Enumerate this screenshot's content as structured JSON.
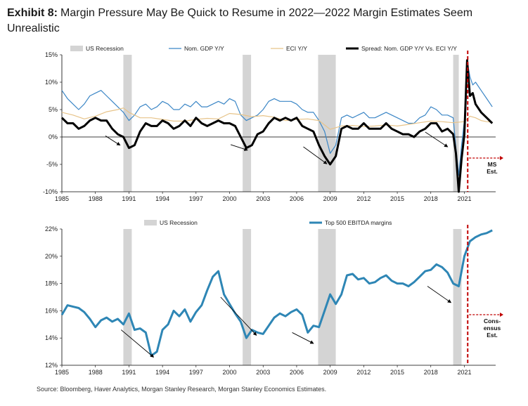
{
  "exhibit": {
    "label": "Exhibit 8:",
    "title": "Margin Pressure May Be Quick to Resume in 2022—2022 Margin Estimates Seem Unrealistic"
  },
  "source": "Source: Bloomberg, Haver Analytics, Morgan Stanley Research, Morgan Stanley Economics Estimates.",
  "colors": {
    "recession": "#d4d4d4",
    "nom_gdp": "#3b86c6",
    "eci": "#e7c48a",
    "spread": "#000000",
    "ebitda": "#2e86b5",
    "estimate_line": "#c00000"
  },
  "chart_data": [
    {
      "type": "line",
      "legend": [
        "US Recession",
        "Nom. GDP Y/Y",
        "ECI Y/Y",
        "Spread: Nom. GDP Y/Y Vs. ECI Y/Y"
      ],
      "xlim": [
        1985,
        2023.8
      ],
      "ylim": [
        -10,
        15
      ],
      "x_ticks": [
        "1985",
        "1988",
        "1991",
        "1994",
        "1997",
        "2000",
        "2003",
        "2006",
        "2009",
        "2012",
        "2015",
        "2018",
        "2021"
      ],
      "y_ticks": [
        "15%",
        "10%",
        "5%",
        "0%",
        "-5%",
        "-10%"
      ],
      "recessions": [
        [
          1990.5,
          1991.25
        ],
        [
          2001.17,
          2001.92
        ],
        [
          2007.92,
          2009.5
        ],
        [
          2020.0,
          2020.5
        ]
      ],
      "estimate_start": 2021.3,
      "estimate_label": [
        "MS",
        "Est."
      ],
      "series": [
        {
          "name": "Nom. GDP Y/Y",
          "x": [
            1985,
            1985.5,
            1986,
            1986.5,
            1987,
            1987.5,
            1988,
            1988.5,
            1989,
            1989.5,
            1990,
            1990.5,
            1991,
            1991.5,
            1992,
            1992.5,
            1993,
            1993.5,
            1994,
            1994.5,
            1995,
            1995.5,
            1996,
            1996.5,
            1997,
            1997.5,
            1998,
            1998.5,
            1999,
            1999.5,
            2000,
            2000.5,
            2001,
            2001.5,
            2002,
            2002.5,
            2003,
            2003.5,
            2004,
            2004.5,
            2005,
            2005.5,
            2006,
            2006.5,
            2007,
            2007.5,
            2008,
            2008.5,
            2009,
            2009.5,
            2010,
            2010.5,
            2011,
            2011.5,
            2012,
            2012.5,
            2013,
            2013.5,
            2014,
            2014.5,
            2015,
            2015.5,
            2016,
            2016.5,
            2017,
            2017.5,
            2018,
            2018.5,
            2019,
            2019.5,
            2020,
            2020.25,
            2020.5,
            2020.75,
            2021,
            2021.25,
            2021.5,
            2021.75,
            2022,
            2022.5,
            2023,
            2023.5
          ],
          "values": [
            8.5,
            7.0,
            6.0,
            5.0,
            6.0,
            7.5,
            8.0,
            8.5,
            7.5,
            6.5,
            5.5,
            4.5,
            3.0,
            4.0,
            5.5,
            6.0,
            5.0,
            5.5,
            6.5,
            6.0,
            5.0,
            5.0,
            6.0,
            5.5,
            6.5,
            5.5,
            5.5,
            6.0,
            6.5,
            6.0,
            7.0,
            6.5,
            4.0,
            3.0,
            3.5,
            4.0,
            5.0,
            6.5,
            7.0,
            6.5,
            6.5,
            6.5,
            6.0,
            5.0,
            4.5,
            4.5,
            3.0,
            1.0,
            -3.0,
            -1.5,
            3.5,
            4.0,
            3.5,
            4.0,
            4.5,
            3.5,
            3.5,
            4.0,
            4.5,
            4.0,
            3.5,
            3.0,
            2.5,
            2.5,
            3.5,
            4.0,
            5.5,
            5.0,
            4.0,
            4.0,
            3.5,
            -2.0,
            -7.0,
            -1.5,
            3.0,
            14.0,
            11.0,
            9.5,
            10.0,
            8.5,
            7.0,
            5.5
          ]
        },
        {
          "name": "ECI Y/Y",
          "x": [
            1985,
            1986,
            1987,
            1988,
            1989,
            1990,
            1990.5,
            1991,
            1992,
            1993,
            1994,
            1995,
            1996,
            1997,
            1998,
            1999,
            2000,
            2001,
            2002,
            2003,
            2004,
            2005,
            2006,
            2007,
            2008,
            2009,
            2010,
            2011,
            2012,
            2013,
            2014,
            2015,
            2016,
            2017,
            2018,
            2019,
            2020,
            2021,
            2021.5,
            2022,
            2022.5,
            2023,
            2023.5
          ],
          "values": [
            4.5,
            4.0,
            3.3,
            3.8,
            4.6,
            5.0,
            5.3,
            4.5,
            3.5,
            3.5,
            3.2,
            2.9,
            2.9,
            3.2,
            3.4,
            3.3,
            4.3,
            4.1,
            3.7,
            3.9,
            3.6,
            3.0,
            3.2,
            3.3,
            3.0,
            1.4,
            2.0,
            2.1,
            1.9,
            2.0,
            2.2,
            2.0,
            2.3,
            2.6,
            2.9,
            2.8,
            2.6,
            2.8,
            3.8,
            3.5,
            3.0,
            2.8,
            2.7
          ]
        },
        {
          "name": "Spread: Nom. GDP Y/Y Vs. ECI Y/Y",
          "x": [
            1985,
            1985.5,
            1986,
            1986.5,
            1987,
            1987.5,
            1988,
            1988.5,
            1989,
            1989.5,
            1990,
            1990.5,
            1991,
            1991.5,
            1992,
            1992.5,
            1993,
            1993.5,
            1994,
            1994.5,
            1995,
            1995.5,
            1996,
            1996.5,
            1997,
            1997.5,
            1998,
            1998.5,
            1999,
            1999.5,
            2000,
            2000.5,
            2001,
            2001.5,
            2002,
            2002.5,
            2003,
            2003.5,
            2004,
            2004.5,
            2005,
            2005.5,
            2006,
            2006.5,
            2007,
            2007.5,
            2008,
            2008.5,
            2009,
            2009.5,
            2010,
            2010.5,
            2011,
            2011.5,
            2012,
            2012.5,
            2013,
            2013.5,
            2014,
            2014.5,
            2015,
            2015.5,
            2016,
            2016.5,
            2017,
            2017.5,
            2018,
            2018.5,
            2019,
            2019.5,
            2020,
            2020.25,
            2020.5,
            2020.75,
            2021,
            2021.25,
            2021.5,
            2021.75,
            2022,
            2022.5,
            2023,
            2023.5
          ],
          "values": [
            3.5,
            2.5,
            2.5,
            1.5,
            2.0,
            3.0,
            3.5,
            3.0,
            3.0,
            1.5,
            0.5,
            0.0,
            -2.0,
            -1.5,
            1.0,
            2.5,
            2.0,
            2.0,
            3.0,
            2.5,
            1.5,
            2.0,
            3.0,
            2.0,
            3.5,
            2.5,
            2.0,
            2.5,
            3.0,
            2.5,
            2.5,
            2.0,
            0.0,
            -2.0,
            -1.5,
            0.5,
            1.0,
            2.5,
            3.5,
            3.0,
            3.5,
            3.0,
            3.5,
            2.0,
            1.5,
            1.0,
            -1.5,
            -3.5,
            -5.0,
            -3.5,
            1.5,
            2.0,
            1.5,
            1.5,
            2.5,
            1.5,
            1.5,
            1.5,
            2.5,
            1.5,
            1.0,
            0.5,
            0.5,
            0.0,
            1.0,
            1.5,
            2.5,
            2.5,
            1.0,
            1.5,
            0.5,
            -3.0,
            -10.0,
            -4.0,
            0.5,
            14.0,
            7.5,
            8.0,
            6.0,
            4.5,
            3.5,
            2.5
          ]
        }
      ]
    },
    {
      "type": "line",
      "legend": [
        "US Recession",
        "Top 500 EBITDA margins"
      ],
      "xlim": [
        1985,
        2023.8
      ],
      "ylim": [
        12,
        22
      ],
      "x_ticks": [
        "1985",
        "1988",
        "1991",
        "1994",
        "1997",
        "2000",
        "2003",
        "2006",
        "2009",
        "2012",
        "2015",
        "2018",
        "2021"
      ],
      "y_ticks": [
        "22%",
        "20%",
        "18%",
        "16%",
        "14%",
        "12%"
      ],
      "recessions": [
        [
          1990.5,
          1991.25
        ],
        [
          2001.17,
          2001.92
        ],
        [
          2007.92,
          2009.5
        ],
        [
          2020.0,
          2020.75
        ]
      ],
      "estimate_start": 2021.3,
      "estimate_label": [
        "Cons-",
        "ensus",
        "Est."
      ],
      "series": [
        {
          "name": "Top 500 EBITDA margins",
          "x": [
            1985,
            1985.5,
            1986,
            1986.5,
            1987,
            1987.5,
            1988,
            1988.5,
            1989,
            1989.5,
            1990,
            1990.5,
            1991,
            1991.5,
            1992,
            1992.5,
            1993,
            1993.5,
            1994,
            1994.5,
            1995,
            1995.5,
            1996,
            1996.5,
            1997,
            1997.5,
            1998,
            1998.5,
            1999,
            1999.5,
            2000,
            2000.5,
            2001,
            2001.5,
            2002,
            2002.5,
            2003,
            2003.5,
            2004,
            2004.5,
            2005,
            2005.5,
            2006,
            2006.5,
            2007,
            2007.5,
            2008,
            2008.5,
            2009,
            2009.5,
            2010,
            2010.5,
            2011,
            2011.5,
            2012,
            2012.5,
            2013,
            2013.5,
            2014,
            2014.5,
            2015,
            2015.5,
            2016,
            2016.5,
            2017,
            2017.5,
            2018,
            2018.5,
            2019,
            2019.5,
            2020,
            2020.5,
            2021,
            2021.5,
            2022,
            2022.5,
            2023,
            2023.5
          ],
          "values": [
            15.7,
            16.4,
            16.3,
            16.2,
            15.9,
            15.4,
            14.8,
            15.3,
            15.5,
            15.2,
            15.4,
            15.0,
            15.8,
            14.6,
            14.7,
            14.4,
            12.7,
            13.0,
            14.6,
            15.0,
            16.0,
            15.6,
            16.1,
            15.2,
            15.9,
            16.4,
            17.5,
            18.5,
            18.9,
            17.2,
            16.5,
            15.8,
            15.2,
            14.0,
            14.6,
            14.4,
            14.3,
            14.9,
            15.5,
            15.8,
            15.6,
            15.9,
            16.1,
            15.7,
            14.4,
            14.9,
            14.8,
            16.0,
            17.2,
            16.5,
            17.2,
            18.6,
            18.7,
            18.3,
            18.4,
            18.0,
            18.1,
            18.4,
            18.6,
            18.2,
            18.0,
            18.0,
            17.8,
            18.1,
            18.5,
            18.9,
            19.0,
            19.4,
            19.2,
            18.8,
            18.0,
            17.8,
            20.0,
            21.1,
            21.4,
            21.6,
            21.7,
            21.9
          ]
        }
      ]
    }
  ]
}
